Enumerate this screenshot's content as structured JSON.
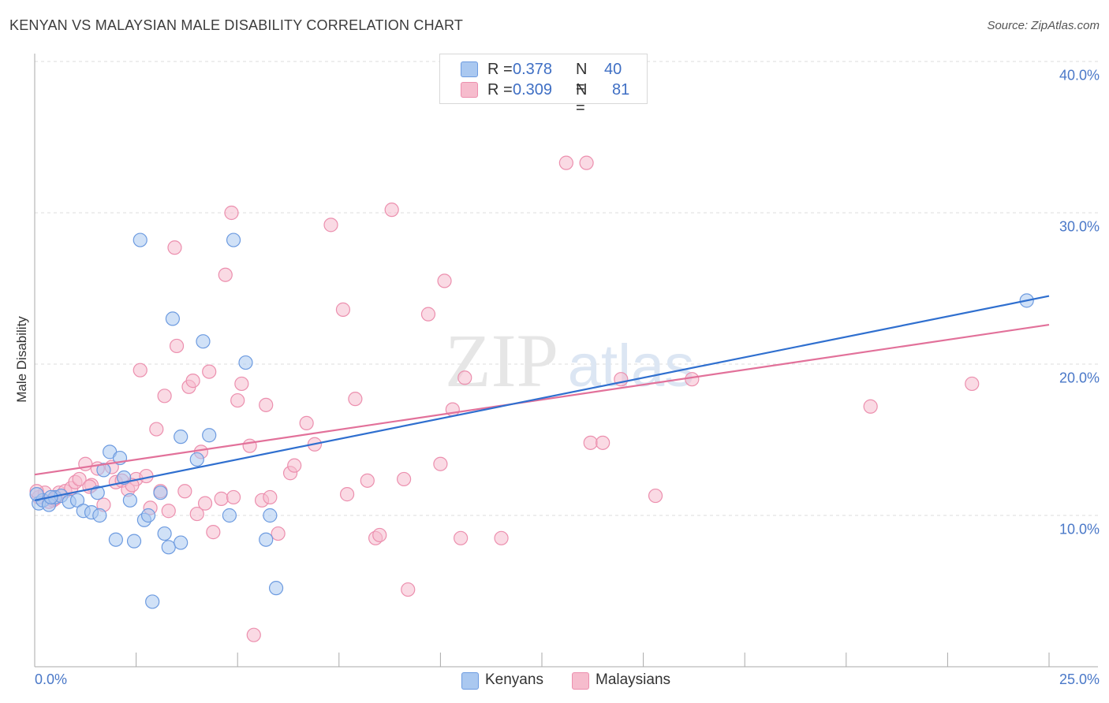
{
  "title": "KENYAN VS MALAYSIAN MALE DISABILITY CORRELATION CHART",
  "source": "Source: ZipAtlas.com",
  "watermark": {
    "zip": "ZIP",
    "atlas": "atlas"
  },
  "colors": {
    "kenyans_fill": "#aac8f0",
    "kenyans_stroke": "#6d9be0",
    "kenyans_line": "#2f6fcf",
    "malaysians_fill": "#f6bccd",
    "malaysians_stroke": "#ec8fae",
    "malaysians_line": "#e2719a",
    "tick_text": "#4a78c8",
    "grid": "#dddddd"
  },
  "legend": {
    "rows": [
      {
        "r_label": "R =",
        "r_value": "0.378",
        "n_label": "N =",
        "n_value": "40"
      },
      {
        "r_label": "R =",
        "r_value": "0.309",
        "n_label": "N =",
        "n_value": "81"
      }
    ]
  },
  "bottom_legend": [
    "Kenyans",
    "Malaysians"
  ],
  "chart_data": {
    "type": "scatter",
    "title": "KENYAN VS MALAYSIAN MALE DISABILITY CORRELATION CHART",
    "xlabel": "",
    "ylabel": "Male Disability",
    "xlim": [
      0,
      25
    ],
    "ylim": [
      0,
      40
    ],
    "y_ticks": [
      10,
      20,
      30,
      40
    ],
    "y_tick_labels": [
      "10.0%",
      "20.0%",
      "30.0%",
      "40.0%"
    ],
    "x_tick_labels": [
      "0.0%",
      "25.0%"
    ],
    "grid": true,
    "legend_position": "top-center",
    "series": [
      {
        "name": "Kenyans",
        "r": 0.378,
        "n": 40,
        "trend": {
          "x0": 0,
          "y0": 11.0,
          "x1": 25,
          "y1": 24.5
        },
        "points": [
          [
            0.1,
            10.8
          ],
          [
            0.2,
            11.0
          ],
          [
            0.35,
            10.7
          ],
          [
            0.5,
            11.2
          ],
          [
            0.65,
            11.3
          ],
          [
            0.85,
            10.9
          ],
          [
            1.05,
            11.0
          ],
          [
            1.2,
            10.3
          ],
          [
            1.4,
            10.2
          ],
          [
            1.55,
            11.5
          ],
          [
            1.7,
            13.0
          ],
          [
            1.85,
            14.2
          ],
          [
            2.0,
            8.4
          ],
          [
            2.1,
            13.8
          ],
          [
            2.2,
            12.5
          ],
          [
            2.35,
            11.0
          ],
          [
            2.45,
            8.3
          ],
          [
            2.6,
            28.2
          ],
          [
            2.7,
            9.7
          ],
          [
            2.8,
            10.0
          ],
          [
            2.9,
            4.3
          ],
          [
            3.1,
            11.5
          ],
          [
            3.2,
            8.8
          ],
          [
            3.3,
            7.9
          ],
          [
            3.4,
            23.0
          ],
          [
            3.6,
            8.2
          ],
          [
            3.6,
            15.2
          ],
          [
            4.0,
            13.7
          ],
          [
            4.15,
            21.5
          ],
          [
            4.3,
            15.3
          ],
          [
            4.8,
            10.0
          ],
          [
            4.9,
            28.2
          ],
          [
            5.2,
            20.1
          ],
          [
            5.7,
            8.4
          ],
          [
            5.8,
            10.0
          ],
          [
            5.95,
            5.2
          ],
          [
            24.45,
            24.2
          ],
          [
            0.05,
            11.4
          ],
          [
            0.4,
            11.2
          ],
          [
            1.6,
            10.0
          ]
        ]
      },
      {
        "name": "Malaysians",
        "r": 0.309,
        "n": 81,
        "trend": {
          "x0": 0,
          "y0": 12.7,
          "x1": 25,
          "y1": 22.6
        },
        "points": [
          [
            0.1,
            11.2
          ],
          [
            0.25,
            11.5
          ],
          [
            0.45,
            11.0
          ],
          [
            0.6,
            11.5
          ],
          [
            0.75,
            11.6
          ],
          [
            0.9,
            11.8
          ],
          [
            1.0,
            12.2
          ],
          [
            1.1,
            12.4
          ],
          [
            1.25,
            13.4
          ],
          [
            1.4,
            12.0
          ],
          [
            1.55,
            13.1
          ],
          [
            1.7,
            10.7
          ],
          [
            1.9,
            13.2
          ],
          [
            2.0,
            12.2
          ],
          [
            2.15,
            12.3
          ],
          [
            2.3,
            11.7
          ],
          [
            2.5,
            12.4
          ],
          [
            2.6,
            19.6
          ],
          [
            2.75,
            12.6
          ],
          [
            2.85,
            10.5
          ],
          [
            3.0,
            15.7
          ],
          [
            3.1,
            11.6
          ],
          [
            3.2,
            17.9
          ],
          [
            3.3,
            10.3
          ],
          [
            3.45,
            27.7
          ],
          [
            3.5,
            21.2
          ],
          [
            3.7,
            11.6
          ],
          [
            3.8,
            18.5
          ],
          [
            3.9,
            18.9
          ],
          [
            4.0,
            10.1
          ],
          [
            4.1,
            14.2
          ],
          [
            4.2,
            10.8
          ],
          [
            4.3,
            19.5
          ],
          [
            4.4,
            8.9
          ],
          [
            4.6,
            11.1
          ],
          [
            4.7,
            25.9
          ],
          [
            4.85,
            30.0
          ],
          [
            4.9,
            11.2
          ],
          [
            5.0,
            17.6
          ],
          [
            5.1,
            18.7
          ],
          [
            5.3,
            14.6
          ],
          [
            5.4,
            2.1
          ],
          [
            5.6,
            11.0
          ],
          [
            5.7,
            17.3
          ],
          [
            5.8,
            11.2
          ],
          [
            6.0,
            8.8
          ],
          [
            6.3,
            12.8
          ],
          [
            6.4,
            13.3
          ],
          [
            6.7,
            16.1
          ],
          [
            6.9,
            14.7
          ],
          [
            7.3,
            29.2
          ],
          [
            7.6,
            23.6
          ],
          [
            7.7,
            11.4
          ],
          [
            7.9,
            17.7
          ],
          [
            8.2,
            12.3
          ],
          [
            8.4,
            8.5
          ],
          [
            8.5,
            8.7
          ],
          [
            8.8,
            30.2
          ],
          [
            9.1,
            12.4
          ],
          [
            9.2,
            5.1
          ],
          [
            9.7,
            23.3
          ],
          [
            10.0,
            13.4
          ],
          [
            10.1,
            25.5
          ],
          [
            10.3,
            17.0
          ],
          [
            10.5,
            8.5
          ],
          [
            10.6,
            19.1
          ],
          [
            11.5,
            8.5
          ],
          [
            13.1,
            33.3
          ],
          [
            13.6,
            33.3
          ],
          [
            13.7,
            14.8
          ],
          [
            14.0,
            14.8
          ],
          [
            14.45,
            19.0
          ],
          [
            15.3,
            11.3
          ],
          [
            16.2,
            19.0
          ],
          [
            20.6,
            17.2
          ],
          [
            23.1,
            18.7
          ],
          [
            0.05,
            11.6
          ],
          [
            0.35,
            10.9
          ],
          [
            0.5,
            11.1
          ],
          [
            1.35,
            11.9
          ],
          [
            2.4,
            12.0
          ]
        ]
      }
    ]
  }
}
